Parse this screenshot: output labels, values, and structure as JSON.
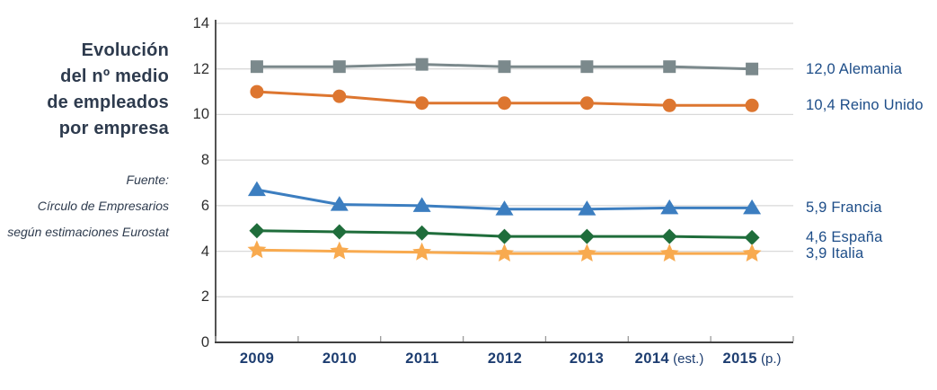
{
  "figure": {
    "title_block": "Evolución\ndel nº medio\nde empleados\npor empresa",
    "source_block": "Fuente:\nCírculo de Empresarios\nsegún estimaciones Eurostat"
  },
  "chart_data": {
    "type": "line",
    "title": "Evolución del nº medio de empleados por empresa",
    "xlabel": "",
    "ylabel": "",
    "ylim": [
      0,
      14
    ],
    "y_ticks": [
      14,
      12,
      10,
      8,
      6,
      4,
      2,
      0
    ],
    "grid": "horizontal",
    "legend_position": "right-end-labels",
    "categories": [
      "2009",
      "2010",
      "2011",
      "2012",
      "2013",
      "2014 (est.)",
      "2015 (p.)"
    ],
    "x_tick_labels": [
      {
        "year": "2009",
        "suffix": ""
      },
      {
        "year": "2010",
        "suffix": ""
      },
      {
        "year": "2011",
        "suffix": ""
      },
      {
        "year": "2012",
        "suffix": ""
      },
      {
        "year": "2013",
        "suffix": ""
      },
      {
        "year": "2014",
        "suffix": " (est.)"
      },
      {
        "year": "2015",
        "suffix": " (p.)"
      }
    ],
    "series": [
      {
        "name": "Alemania",
        "slug": "alemania",
        "marker": "square",
        "color": "#7b898c",
        "end_label": "12,0 Alemania",
        "values": [
          12.1,
          12.1,
          12.2,
          12.1,
          12.1,
          12.1,
          12.0
        ]
      },
      {
        "name": "Reino Unido",
        "slug": "reino-unido",
        "marker": "circle",
        "color": "#dd7630",
        "end_label": "10,4 Reino Unido",
        "values": [
          11.0,
          10.8,
          10.5,
          10.5,
          10.5,
          10.4,
          10.4
        ]
      },
      {
        "name": "Francia",
        "slug": "francia",
        "marker": "triangle",
        "color": "#3c7ec0",
        "end_label": "5,9 Francia",
        "values": [
          6.7,
          6.05,
          6.0,
          5.85,
          5.85,
          5.9,
          5.9
        ]
      },
      {
        "name": "España",
        "slug": "espana",
        "marker": "diamond",
        "color": "#1f6d3b",
        "end_label": "4,6 España",
        "values": [
          4.9,
          4.85,
          4.8,
          4.65,
          4.65,
          4.65,
          4.6
        ]
      },
      {
        "name": "Italia",
        "slug": "italia",
        "marker": "star",
        "color": "#f8aa4f",
        "end_label": "3,9 Italia",
        "values": [
          4.05,
          4.0,
          3.95,
          3.9,
          3.9,
          3.9,
          3.9
        ]
      }
    ],
    "style": {
      "grid_color": "#d9d9d9",
      "axis_color": "#404040",
      "tick_color": "#9a9a9a",
      "y_label_color": "#2f2f2f",
      "x_label_color": "#1d3d70",
      "end_label_color": "#1d4d88",
      "title_color": "#2e3b4e"
    }
  }
}
